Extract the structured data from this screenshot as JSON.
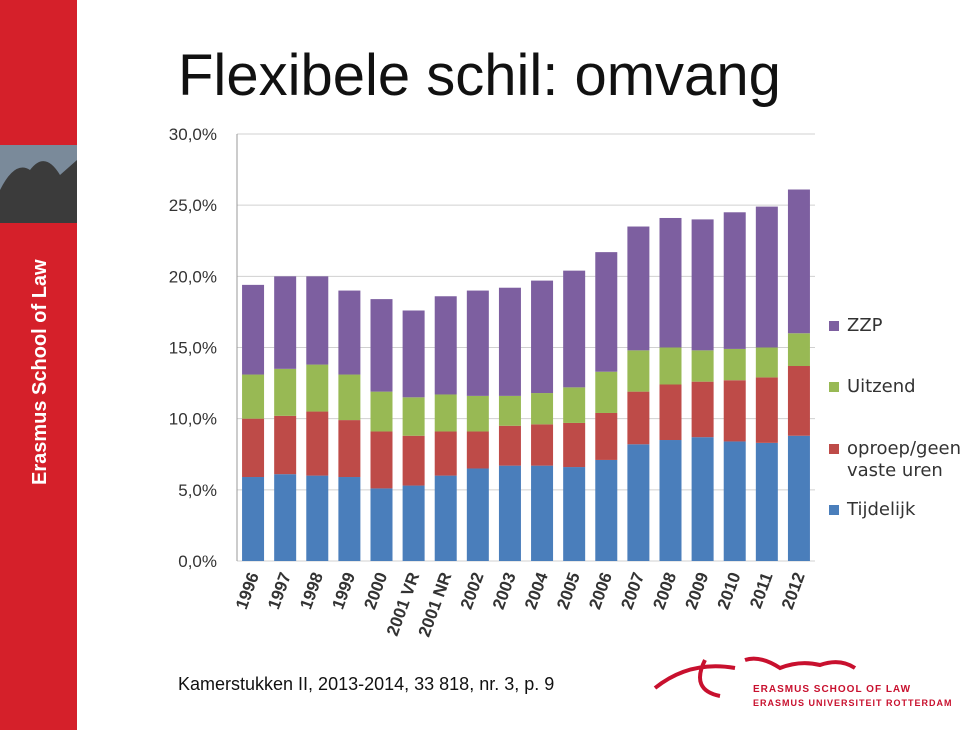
{
  "title": "Flexibele schil: omvang",
  "sidebar_text": "Erasmus School of Law",
  "source": "Kamerstukken II, 2013-2014, 33 818, nr. 3, p. 9",
  "logo": {
    "line1": "ERASMUS SCHOOL OF LAW",
    "line2": "ERASMUS UNIVERSITEIT ROTTERDAM"
  },
  "chart_data": {
    "type": "stacked_bar",
    "categories": [
      "1996",
      "1997",
      "1998",
      "1999",
      "2000",
      "2001 VR",
      "2001 NR",
      "2002",
      "2003",
      "2004",
      "2005",
      "2006",
      "2007",
      "2008",
      "2009",
      "2010",
      "2011",
      "2012"
    ],
    "series": [
      {
        "name": "Tijdelijk",
        "color": "#4a7ebb",
        "values": [
          5.9,
          6.1,
          6.0,
          5.9,
          5.1,
          5.3,
          6.0,
          6.5,
          6.7,
          6.7,
          6.6,
          7.1,
          8.2,
          8.5,
          8.7,
          8.4,
          8.3,
          8.8
        ]
      },
      {
        "name": "oproep/geen vaste uren",
        "color": "#be4b48",
        "values": [
          4.1,
          4.1,
          4.5,
          4.0,
          4.0,
          3.5,
          3.1,
          2.6,
          2.8,
          2.9,
          3.1,
          3.3,
          3.7,
          3.9,
          3.9,
          4.3,
          4.6,
          4.9
        ]
      },
      {
        "name": "Uitzend",
        "color": "#98b954",
        "values": [
          3.1,
          3.3,
          3.3,
          3.2,
          2.8,
          2.7,
          2.6,
          2.5,
          2.1,
          2.2,
          2.5,
          2.9,
          2.9,
          2.6,
          2.2,
          2.2,
          2.1,
          2.3
        ]
      },
      {
        "name": "ZZP",
        "color": "#7d5fa0",
        "values": [
          6.3,
          6.5,
          6.2,
          5.9,
          6.5,
          6.1,
          6.9,
          7.4,
          7.6,
          7.9,
          8.2,
          8.4,
          8.7,
          9.1,
          9.2,
          9.6,
          9.9,
          10.1
        ]
      }
    ],
    "ylim": [
      0,
      30
    ],
    "yticks": [
      {
        "value": 0,
        "label": "0,0%"
      },
      {
        "value": 5,
        "label": "5,0%"
      },
      {
        "value": 10,
        "label": "10,0%"
      },
      {
        "value": 15,
        "label": "15,0%"
      },
      {
        "value": 20,
        "label": "20,0%"
      },
      {
        "value": 25,
        "label": "25,0%"
      },
      {
        "value": 30,
        "label": "30,0%"
      }
    ],
    "grid": true,
    "legend": "right"
  }
}
